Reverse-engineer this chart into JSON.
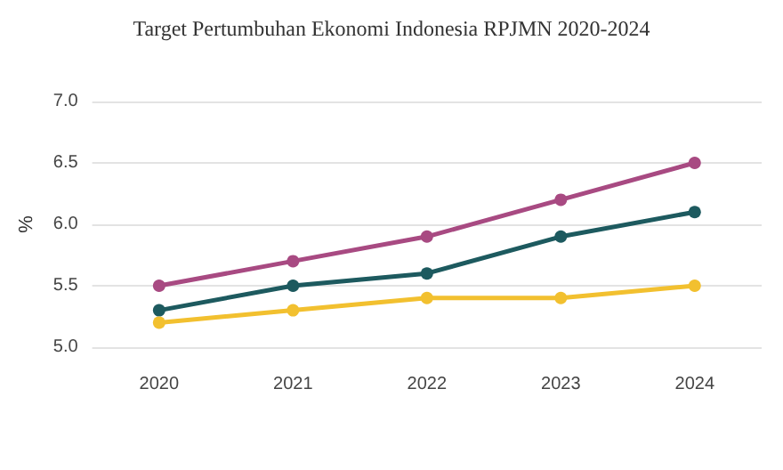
{
  "chart_data": {
    "type": "line",
    "title": "Target Pertumbuhan Ekonomi Indonesia RPJMN 2020-2024",
    "ylabel": "%",
    "categories": [
      "2020",
      "2021",
      "2022",
      "2023",
      "2024"
    ],
    "series": [
      {
        "color": "#a84a82",
        "values": [
          5.5,
          5.7,
          5.9,
          6.2,
          6.5
        ]
      },
      {
        "color": "#1d5a5f",
        "values": [
          5.3,
          5.5,
          5.6,
          5.9,
          6.1
        ]
      },
      {
        "color": "#f2c02f",
        "values": [
          5.2,
          5.3,
          5.4,
          5.4,
          5.5
        ]
      }
    ],
    "ylim": [
      5.0,
      7.0
    ],
    "yticks": [
      {
        "value": 5,
        "label": "5.0"
      },
      5.5,
      {
        "value": 6,
        "label": "6.0"
      },
      6.5,
      {
        "value": 7,
        "label": "7.0"
      }
    ],
    "grid": "y",
    "marker": "circle",
    "line_style": "solid"
  }
}
